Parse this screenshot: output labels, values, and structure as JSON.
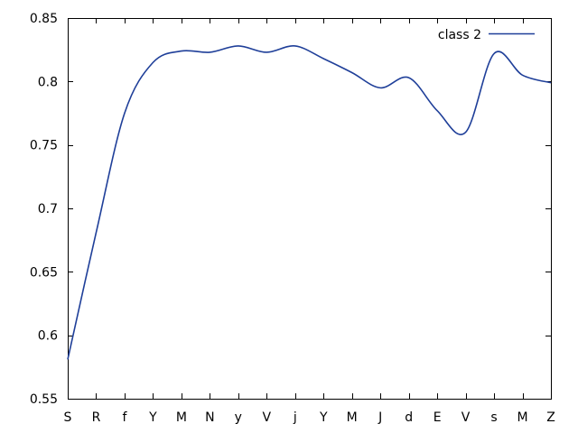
{
  "chart_data": {
    "type": "line",
    "title": "",
    "xlabel": "",
    "ylabel": "",
    "categories": [
      "S",
      "R",
      "f",
      "Y",
      "M",
      "N",
      "y",
      "V",
      "j",
      "Y",
      "M",
      "J",
      "d",
      "E",
      "V",
      "s",
      "M",
      "Z"
    ],
    "ylim": [
      0.55,
      0.85
    ],
    "yticks": [
      0.55,
      0.6,
      0.65,
      0.7,
      0.75,
      0.8,
      0.85
    ],
    "ytick_labels": [
      "0.55",
      "0.6",
      "0.65",
      "0.7",
      "0.75",
      "0.8",
      "0.85"
    ],
    "grid": false,
    "legend_position": "top-right",
    "series": [
      {
        "name": "class 2",
        "color": "#1f3f99",
        "values": [
          0.581,
          0.681,
          0.775,
          0.815,
          0.824,
          0.823,
          0.828,
          0.823,
          0.828,
          0.818,
          0.807,
          0.795,
          0.803,
          0.777,
          0.76,
          0.822,
          0.805,
          0.799
        ]
      }
    ]
  }
}
